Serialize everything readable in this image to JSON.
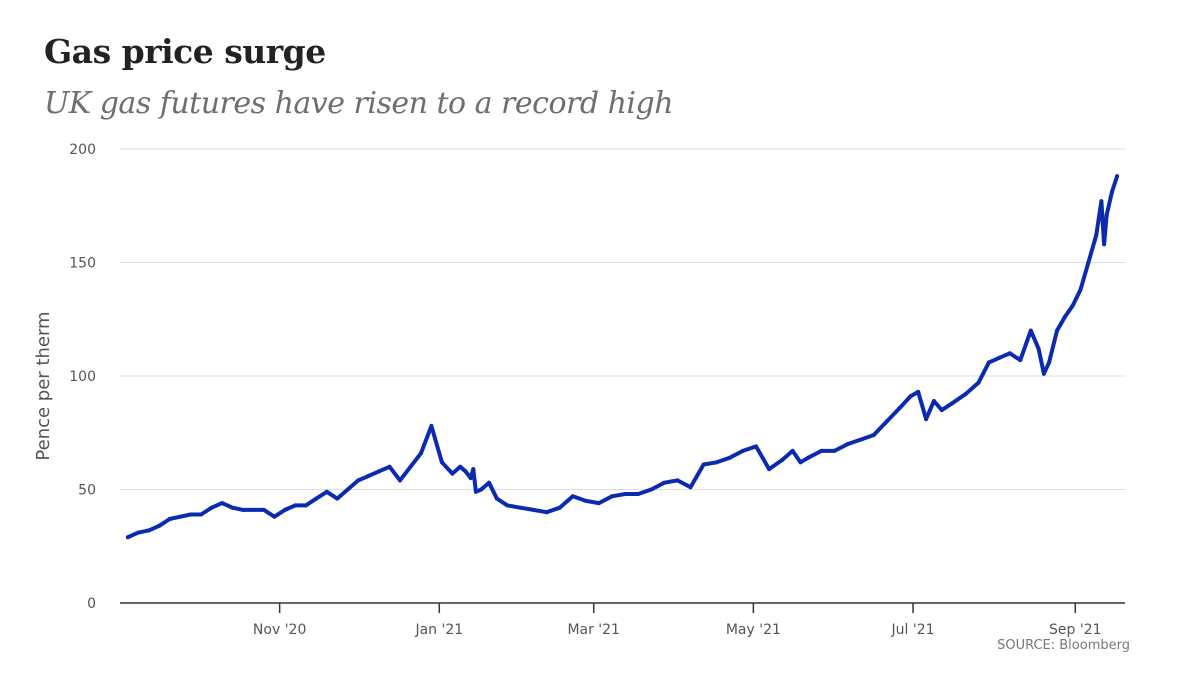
{
  "chart_data": {
    "type": "line",
    "title": "Gas price surge",
    "subtitle": "UK gas futures have risen to a record high",
    "xlabel": "",
    "ylabel": "Pence per therm",
    "source": "SOURCE: Bloomberg",
    "xlim": [
      "2020-09-01",
      "2021-09-20"
    ],
    "ylim": [
      0,
      200
    ],
    "yticks": [
      0,
      50,
      100,
      150,
      200
    ],
    "xticks": [
      {
        "date": "2020-11-01",
        "label": "Nov '20"
      },
      {
        "date": "2021-01-01",
        "label": "Jan '21"
      },
      {
        "date": "2021-03-01",
        "label": "Mar '21"
      },
      {
        "date": "2021-05-01",
        "label": "May '21"
      },
      {
        "date": "2021-07-01",
        "label": "Jul '21"
      },
      {
        "date": "2021-09-01",
        "label": "Sep '21"
      }
    ],
    "grid": true,
    "line_color": "#0a2bb0",
    "series": [
      {
        "x": [
          "2020-09-04",
          "2020-09-08",
          "2020-09-12",
          "2020-09-16",
          "2020-09-20",
          "2020-09-24",
          "2020-09-28",
          "2020-10-02",
          "2020-10-06",
          "2020-10-10",
          "2020-10-14",
          "2020-10-18",
          "2020-10-22",
          "2020-10-26",
          "2020-10-30",
          "2020-11-03",
          "2020-11-07",
          "2020-11-11",
          "2020-11-15",
          "2020-11-19",
          "2020-11-23",
          "2020-11-27",
          "2020-12-01",
          "2020-12-05",
          "2020-12-09",
          "2020-12-13",
          "2020-12-17",
          "2020-12-21",
          "2020-12-25",
          "2020-12-29",
          "2021-01-02",
          "2021-01-06",
          "2021-01-09",
          "2021-01-11",
          "2021-01-13",
          "2021-01-14",
          "2021-01-15",
          "2021-01-17",
          "2021-01-20",
          "2021-01-23",
          "2021-01-27",
          "2021-02-01",
          "2021-02-06",
          "2021-02-11",
          "2021-02-16",
          "2021-02-21",
          "2021-02-26",
          "2021-03-03",
          "2021-03-08",
          "2021-03-13",
          "2021-03-18",
          "2021-03-23",
          "2021-03-28",
          "2021-04-02",
          "2021-04-07",
          "2021-04-12",
          "2021-04-17",
          "2021-04-22",
          "2021-04-27",
          "2021-05-02",
          "2021-05-07",
          "2021-05-12",
          "2021-05-16",
          "2021-05-19",
          "2021-05-22",
          "2021-05-27",
          "2021-06-01",
          "2021-06-06",
          "2021-06-11",
          "2021-06-16",
          "2021-06-21",
          "2021-06-26",
          "2021-06-30",
          "2021-07-03",
          "2021-07-06",
          "2021-07-09",
          "2021-07-12",
          "2021-07-16",
          "2021-07-21",
          "2021-07-26",
          "2021-07-30",
          "2021-08-03",
          "2021-08-07",
          "2021-08-11",
          "2021-08-15",
          "2021-08-18",
          "2021-08-20",
          "2021-08-22",
          "2021-08-25",
          "2021-08-28",
          "2021-08-31",
          "2021-09-03",
          "2021-09-06",
          "2021-09-09",
          "2021-09-11",
          "2021-09-12",
          "2021-09-13",
          "2021-09-15",
          "2021-09-17"
        ],
        "values": [
          29,
          31,
          32,
          34,
          37,
          38,
          39,
          39,
          42,
          44,
          42,
          41,
          41,
          41,
          38,
          41,
          43,
          43,
          46,
          49,
          46,
          50,
          54,
          56,
          58,
          60,
          54,
          60,
          66,
          78,
          62,
          57,
          60,
          58,
          55,
          59,
          49,
          50,
          53,
          46,
          43,
          42,
          41,
          40,
          42,
          47,
          45,
          44,
          47,
          48,
          48,
          50,
          53,
          54,
          51,
          61,
          62,
          64,
          67,
          69,
          59,
          63,
          67,
          62,
          64,
          67,
          67,
          70,
          72,
          74,
          80,
          86,
          91,
          93,
          81,
          89,
          85,
          88,
          92,
          97,
          106,
          108,
          110,
          107,
          120,
          112,
          101,
          106,
          120,
          126,
          131,
          138,
          150,
          162,
          177,
          158,
          171,
          181,
          188
        ]
      }
    ]
  }
}
